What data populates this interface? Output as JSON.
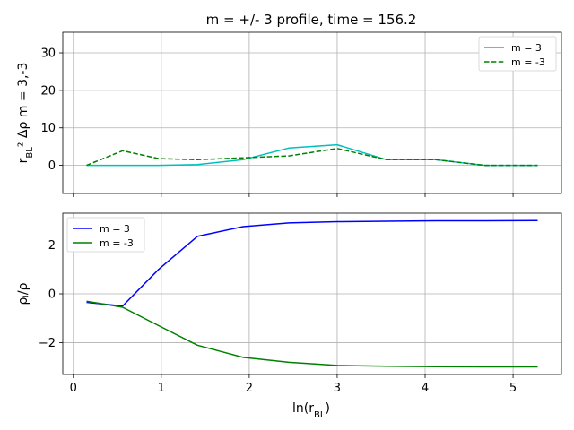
{
  "title": "m = +/- 3 profile, time = 156.2",
  "chart_data": [
    {
      "type": "line",
      "ylabel": "r_BL² Δρ   m = 3,-3",
      "ylim": [
        -7.5,
        35.5
      ],
      "xlim": [
        -0.12,
        5.55
      ],
      "yticks": [
        0,
        10,
        20,
        30
      ],
      "xticks": [
        0,
        1,
        2,
        3,
        4,
        5
      ],
      "show_xtick_labels": false,
      "grid": true,
      "legend_position": "upper right",
      "series": [
        {
          "name": "m = 3",
          "color": "#00bfbf",
          "dash": "solid",
          "x": [
            0.15,
            0.56,
            0.97,
            1.41,
            1.93,
            2.45,
            3.0,
            3.56,
            4.12,
            4.68,
            5.28
          ],
          "y": [
            0,
            0,
            0,
            0.2,
            1.5,
            4.6,
            5.5,
            1.5,
            1.5,
            0,
            0
          ]
        },
        {
          "name": "m = -3",
          "color": "#008000",
          "dash": "dashed",
          "x": [
            0.15,
            0.56,
            0.97,
            1.41,
            1.93,
            2.45,
            3.0,
            3.56,
            4.12,
            4.68,
            5.28
          ],
          "y": [
            0,
            3.9,
            1.8,
            1.5,
            2.0,
            2.5,
            4.5,
            1.5,
            1.5,
            0,
            0
          ]
        }
      ]
    },
    {
      "type": "line",
      "ylabel": "ρⱼ/ρ",
      "xlabel": "ln(r_BL)",
      "ylim": [
        -3.3,
        3.3
      ],
      "xlim": [
        -0.12,
        5.55
      ],
      "yticks": [
        -2,
        0,
        2
      ],
      "ytick_labels": [
        "−2",
        "0",
        "2"
      ],
      "xticks": [
        0,
        1,
        2,
        3,
        4,
        5
      ],
      "show_xtick_labels": true,
      "grid": true,
      "legend_position": "upper left",
      "series": [
        {
          "name": "m = 3",
          "color": "#0000ff",
          "dash": "solid",
          "x": [
            0.15,
            0.56,
            0.97,
            1.41,
            1.93,
            2.45,
            3.0,
            3.56,
            4.12,
            4.68,
            5.28
          ],
          "y": [
            -0.35,
            -0.5,
            1.0,
            2.35,
            2.75,
            2.9,
            2.95,
            2.97,
            2.99,
            2.99,
            3.0
          ]
        },
        {
          "name": "m = -3",
          "color": "#008000",
          "dash": "solid",
          "x": [
            0.15,
            0.56,
            0.97,
            1.41,
            1.93,
            2.45,
            3.0,
            3.56,
            4.12,
            4.68,
            5.28
          ],
          "y": [
            -0.3,
            -0.55,
            -1.3,
            -2.1,
            -2.6,
            -2.8,
            -2.93,
            -2.96,
            -2.98,
            -2.99,
            -2.99
          ]
        }
      ]
    }
  ]
}
